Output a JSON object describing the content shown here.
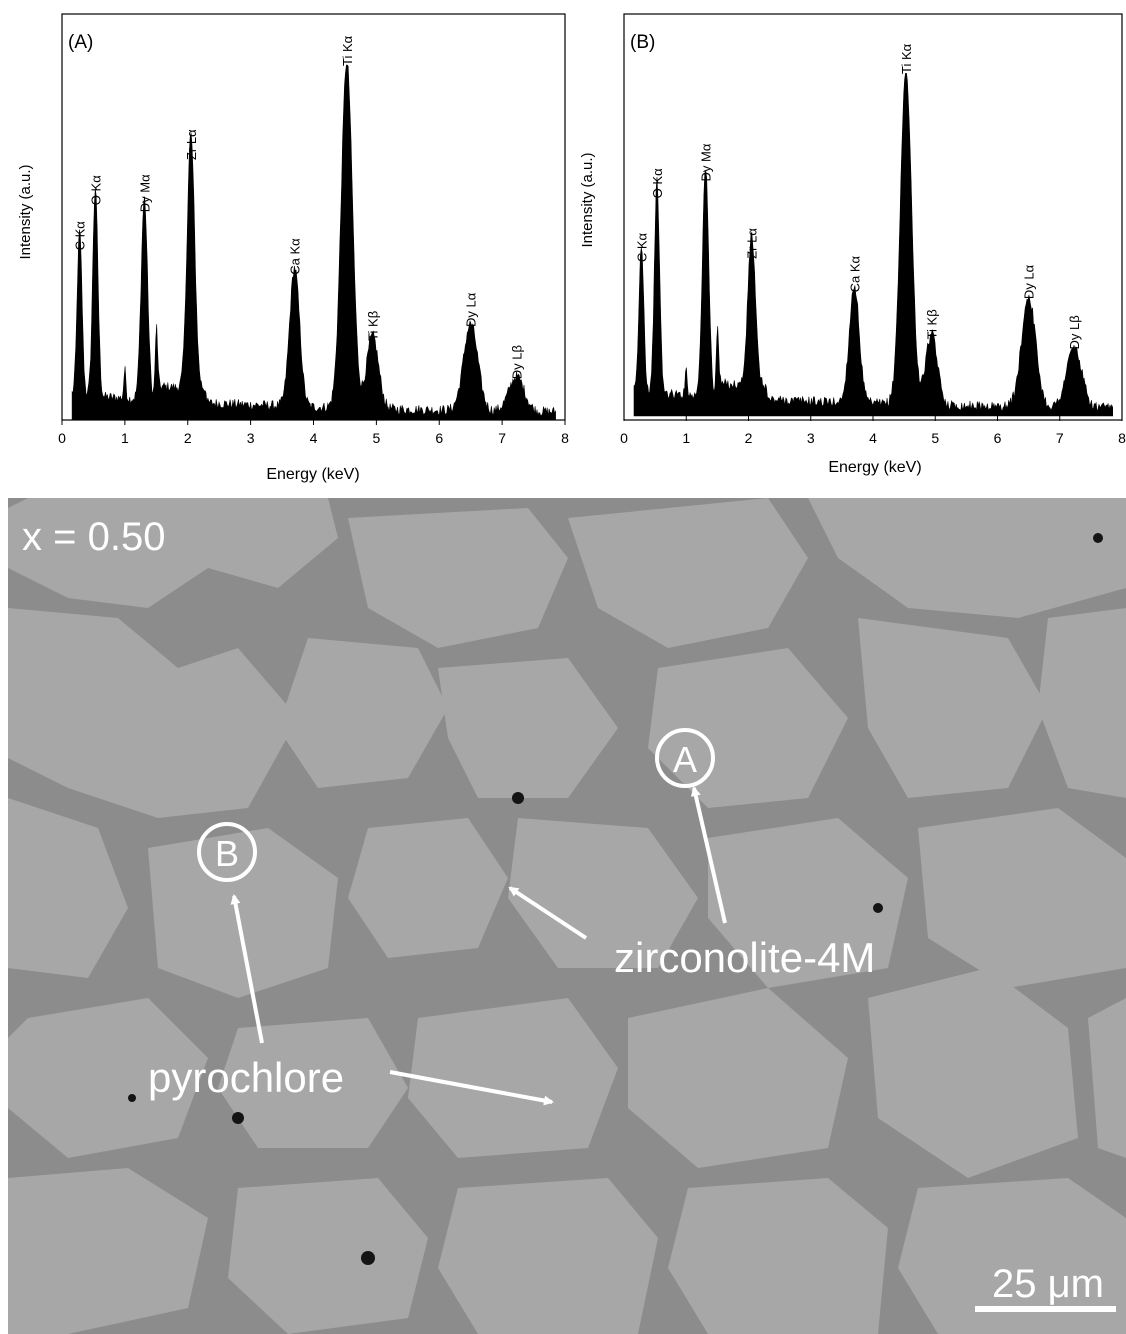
{
  "chart_data": [
    {
      "type": "line",
      "panel_label": "(A)",
      "xlabel": "Energy (keV)",
      "ylabel": "Intensity (a.u.)",
      "xlim": [
        0,
        8
      ],
      "xticks": [
        "0",
        "1",
        "2",
        "3",
        "4",
        "5",
        "6",
        "7",
        "8"
      ],
      "series": [
        {
          "peaks": [
            {
              "label": "C Kα",
              "x": 0.28,
              "y": 0.47
            },
            {
              "label": "O Kα",
              "x": 0.53,
              "y": 0.6
            },
            {
              "label": "Dy Mα",
              "x": 1.31,
              "y": 0.58
            },
            {
              "label": "Zr Lα",
              "x": 2.05,
              "y": 0.73
            },
            {
              "label": "Ca Kα",
              "x": 3.7,
              "y": 0.4
            },
            {
              "label": "Ti Kα",
              "x": 4.53,
              "y": 1.0
            },
            {
              "label": "Ti Kβ",
              "x": 4.94,
              "y": 0.21
            },
            {
              "label": "Dy Lα",
              "x": 6.5,
              "y": 0.25
            },
            {
              "label": "Dy Lβ",
              "x": 7.23,
              "y": 0.1
            }
          ]
        }
      ]
    },
    {
      "type": "line",
      "panel_label": "(B)",
      "xlabel": "Energy (keV)",
      "ylabel": "Intensity (a.u.)",
      "xlim": [
        0,
        8
      ],
      "xticks": [
        "0",
        "1",
        "2",
        "3",
        "4",
        "5",
        "6",
        "7",
        "8"
      ],
      "series": [
        {
          "peaks": [
            {
              "label": "C Kα",
              "x": 0.28,
              "y": 0.44
            },
            {
              "label": "O Kα",
              "x": 0.53,
              "y": 0.63
            },
            {
              "label": "Dy Mα",
              "x": 1.31,
              "y": 0.68
            },
            {
              "label": "Zr Lα",
              "x": 2.05,
              "y": 0.45
            },
            {
              "label": "Ca Kα",
              "x": 3.7,
              "y": 0.35
            },
            {
              "label": "Ti Kα",
              "x": 4.53,
              "y": 1.0
            },
            {
              "label": "Ti Kβ",
              "x": 4.94,
              "y": 0.21
            },
            {
              "label": "Dy Lα",
              "x": 6.5,
              "y": 0.33
            },
            {
              "label": "Dy Lβ",
              "x": 7.23,
              "y": 0.18
            }
          ]
        }
      ]
    }
  ],
  "micrograph": {
    "composition_label": "x = 0.50",
    "marker_a": "A",
    "marker_b": "B",
    "label_zirconolite": "zirconolite-4M",
    "label_pyrochlore": "pyrochlore",
    "scale_bar": "25 μm",
    "colors": {
      "bright_phase": "#a7a7a7",
      "dark_phase": "#8c8c8c",
      "annotation": "#ffffff"
    }
  }
}
